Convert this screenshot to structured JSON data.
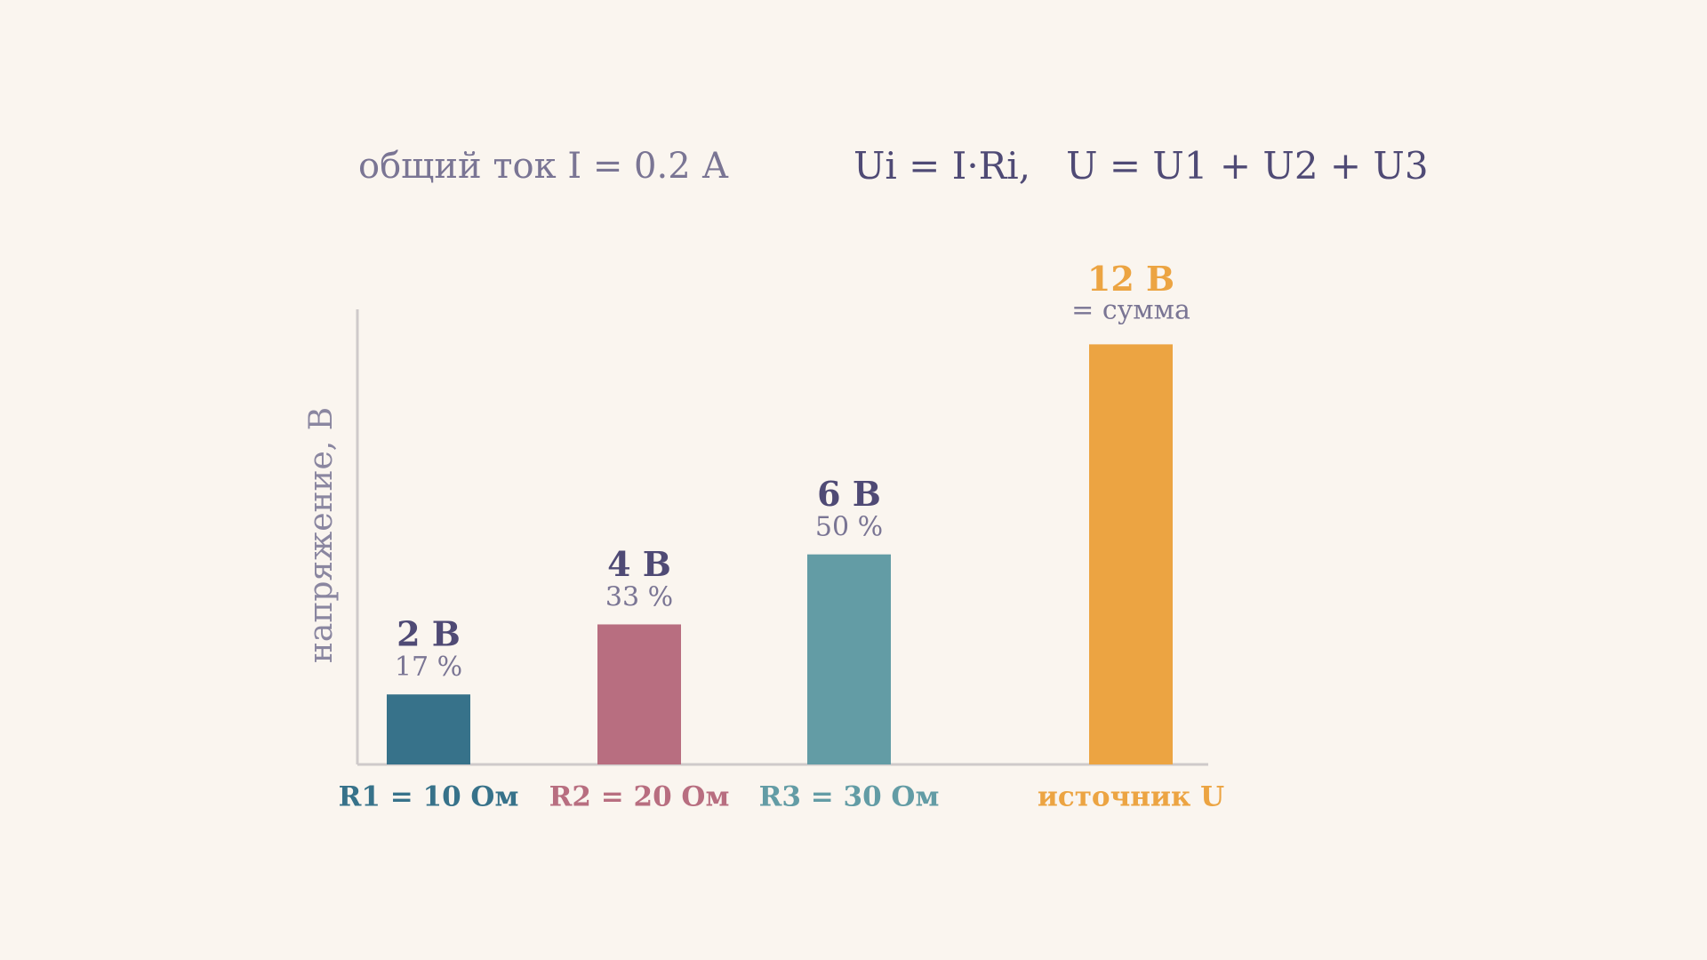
{
  "chart_data": {
    "type": "bar",
    "header_left": "общий ток I = 0.2 А",
    "header_right": "Ui = I·Ri,   U = U1 + U2 + U3",
    "y_label": "напряжение, В",
    "categories": [
      "R1 = 10 Ом",
      "R2 = 20 Ом",
      "R3 = 30 Ом",
      "источник U"
    ],
    "values": [
      2,
      4,
      6,
      12
    ],
    "value_labels": [
      "2 В",
      "4 В",
      "6 В",
      "12 В"
    ],
    "sub_labels": [
      "17 %",
      "33 %",
      "50 %",
      "= сумма"
    ],
    "colors": [
      "#37728a",
      "#b86e80",
      "#639ca5",
      "#eca442"
    ],
    "ylim": [
      0,
      13
    ]
  }
}
